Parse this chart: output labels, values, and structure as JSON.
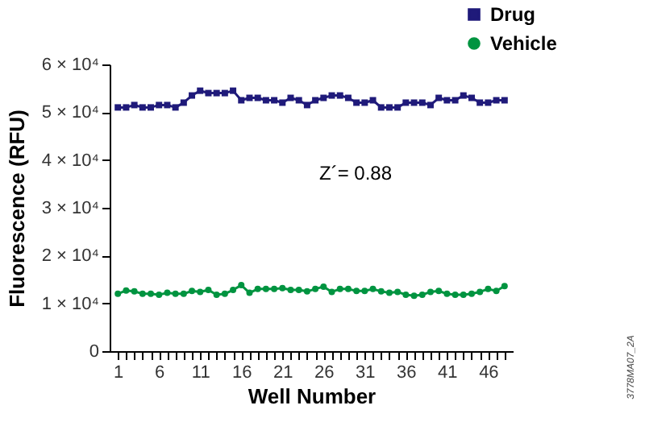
{
  "chart_data": {
    "type": "line",
    "xlabel": "Well Number",
    "ylabel": "Fluorescence (RFU)",
    "x": [
      1,
      2,
      3,
      4,
      5,
      6,
      7,
      8,
      9,
      10,
      11,
      12,
      13,
      14,
      15,
      16,
      17,
      18,
      19,
      20,
      21,
      22,
      23,
      24,
      25,
      26,
      27,
      28,
      29,
      30,
      31,
      32,
      33,
      34,
      35,
      36,
      37,
      38,
      39,
      40,
      41,
      42,
      43,
      44,
      45,
      46,
      47,
      48
    ],
    "series": [
      {
        "name": "Drug",
        "color": "#1f1a7a",
        "marker": "square",
        "values": [
          51000,
          51000,
          51500,
          51000,
          51000,
          51500,
          51500,
          51000,
          52000,
          53500,
          54500,
          54000,
          54000,
          54000,
          54500,
          52500,
          53000,
          53000,
          52500,
          52500,
          52000,
          53000,
          52500,
          51500,
          52500,
          53000,
          53500,
          53500,
          53000,
          52000,
          52000,
          52500,
          51000,
          51000,
          51000,
          52000,
          52000,
          52000,
          51500,
          53000,
          52500,
          52500,
          53500,
          53000,
          52000,
          52000,
          52500,
          52500
        ]
      },
      {
        "name": "Vehicle",
        "color": "#009440",
        "marker": "circle",
        "values": [
          12000,
          12700,
          12500,
          12000,
          12000,
          11800,
          12200,
          12000,
          12000,
          12600,
          12400,
          12800,
          11800,
          12000,
          12800,
          13800,
          12200,
          13000,
          13000,
          13000,
          13200,
          12800,
          12800,
          12500,
          13000,
          13500,
          12400,
          13000,
          13000,
          12600,
          12600,
          13000,
          12500,
          12200,
          12400,
          11800,
          11600,
          11800,
          12400,
          12600,
          12000,
          11800,
          11800,
          12000,
          12400,
          13000,
          12600,
          13600
        ]
      }
    ],
    "xlim": [
      0,
      49
    ],
    "xticks": [
      {
        "value": 1,
        "label": "1"
      },
      {
        "value": 2,
        "label": null
      },
      {
        "value": 3,
        "label": null
      },
      {
        "value": 4,
        "label": null
      },
      {
        "value": 5,
        "label": null
      },
      {
        "value": 6,
        "label": "6"
      },
      {
        "value": 7,
        "label": null
      },
      {
        "value": 8,
        "label": null
      },
      {
        "value": 9,
        "label": null
      },
      {
        "value": 10,
        "label": null
      },
      {
        "value": 11,
        "label": "11"
      },
      {
        "value": 12,
        "label": null
      },
      {
        "value": 13,
        "label": null
      },
      {
        "value": 14,
        "label": null
      },
      {
        "value": 15,
        "label": null
      },
      {
        "value": 16,
        "label": "16"
      },
      {
        "value": 17,
        "label": null
      },
      {
        "value": 18,
        "label": null
      },
      {
        "value": 19,
        "label": null
      },
      {
        "value": 20,
        "label": null
      },
      {
        "value": 21,
        "label": "21"
      },
      {
        "value": 22,
        "label": null
      },
      {
        "value": 23,
        "label": null
      },
      {
        "value": 24,
        "label": null
      },
      {
        "value": 25,
        "label": null
      },
      {
        "value": 26,
        "label": "26"
      },
      {
        "value": 27,
        "label": null
      },
      {
        "value": 28,
        "label": null
      },
      {
        "value": 29,
        "label": null
      },
      {
        "value": 30,
        "label": null
      },
      {
        "value": 31,
        "label": "31"
      },
      {
        "value": 32,
        "label": null
      },
      {
        "value": 33,
        "label": null
      },
      {
        "value": 34,
        "label": null
      },
      {
        "value": 35,
        "label": null
      },
      {
        "value": 36,
        "label": "36"
      },
      {
        "value": 37,
        "label": null
      },
      {
        "value": 38,
        "label": null
      },
      {
        "value": 39,
        "label": null
      },
      {
        "value": 40,
        "label": null
      },
      {
        "value": 41,
        "label": "41"
      },
      {
        "value": 42,
        "label": null
      },
      {
        "value": 43,
        "label": null
      },
      {
        "value": 44,
        "label": null
      },
      {
        "value": 45,
        "label": null
      },
      {
        "value": 46,
        "label": "46"
      },
      {
        "value": 47,
        "label": null
      },
      {
        "value": 48,
        "label": null
      }
    ],
    "ylim": [
      0,
      60000
    ],
    "yticks": [
      0,
      {
        "value": 10000,
        "label": "1 × 10⁴"
      },
      {
        "value": 20000,
        "label": "2 × 10⁴"
      },
      {
        "value": 30000,
        "label": "3 × 10⁴"
      },
      {
        "value": 40000,
        "label": "4 × 10⁴"
      },
      {
        "value": 50000,
        "label": "5 × 10⁴"
      },
      {
        "value": 60000,
        "label": "6 × 10⁴"
      }
    ],
    "annotations": [
      "Z´= 0.88",
      "3778MA07_2A"
    ],
    "grid": false,
    "legend": "top right",
    "line_style": "solid"
  }
}
